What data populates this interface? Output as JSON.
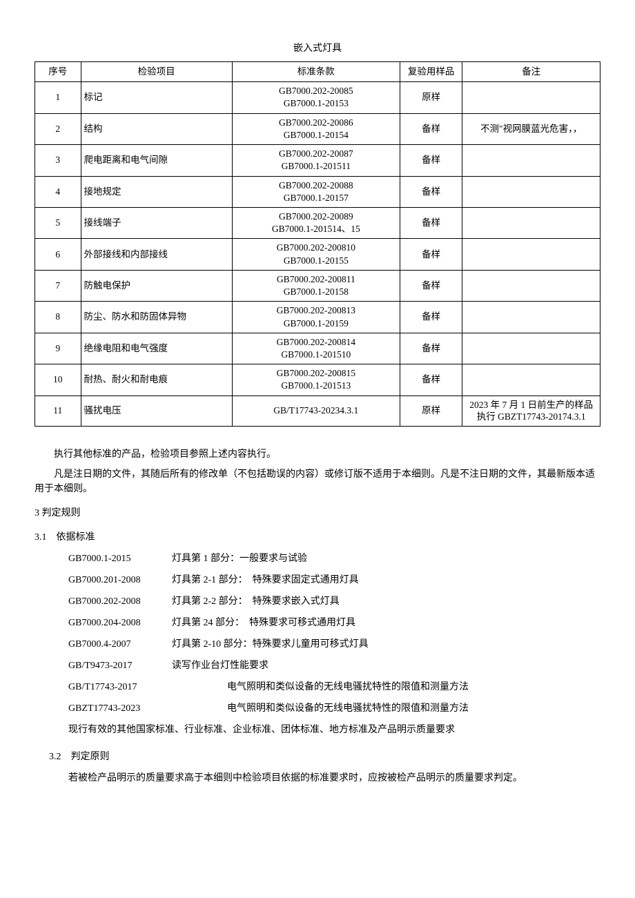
{
  "title": "嵌入式灯具",
  "table": {
    "headers": [
      "序号",
      "检验项目",
      "标准条款",
      "复验用样品",
      "备注"
    ],
    "rows": [
      {
        "seq": "1",
        "item": "标记",
        "std": "GB7000.202-20085\nGB7000.1-20153",
        "sample": "原样",
        "note": ""
      },
      {
        "seq": "2",
        "item": "结构",
        "std": "GB7000.202-20086\nGB7000.1-20154",
        "sample": "备样",
        "note": "不测\"视网膜蓝光危害，，"
      },
      {
        "seq": "3",
        "item": "爬电距离和电气间隙",
        "std": "GB7000.202-20087\nGB7000.1-201511",
        "sample": "备样",
        "note": ""
      },
      {
        "seq": "4",
        "item": "接地规定",
        "std": "GB7000.202-20088\nGB7000.1-20157",
        "sample": "备样",
        "note": ""
      },
      {
        "seq": "5",
        "item": "接线端子",
        "std": "GB7000.202-20089\nGB7000.1-201514、15",
        "sample": "备样",
        "note": ""
      },
      {
        "seq": "6",
        "item": "外部接线和内部接线",
        "std": "GB7000.202-200810\nGB7000.1-20155",
        "sample": "备样",
        "note": ""
      },
      {
        "seq": "7",
        "item": "防触电保护",
        "std": "GB7000.202-200811\nGB7000.1-20158",
        "sample": "备样",
        "note": ""
      },
      {
        "seq": "8",
        "item": "防尘、防水和防固体异物",
        "std": "GB7000.202-200813\nGB7000.1-20159",
        "sample": "备样",
        "note": ""
      },
      {
        "seq": "9",
        "item": "绝缘电阻和电气强度",
        "std": "GB7000.202-200814\nGB7000.1-201510",
        "sample": "备样",
        "note": ""
      },
      {
        "seq": "10",
        "item": "耐热、耐火和耐电痕",
        "std": "GB7000.202-200815\nGB7000.1-201513",
        "sample": "备样",
        "note": ""
      },
      {
        "seq": "11",
        "item": "骚扰电压",
        "std": "GB/T17743-20234.3.1",
        "sample": "原样",
        "note": "2023 年 7 月 1 日前生产的样品执行 GBZT17743-20174.3.1"
      }
    ]
  },
  "paragraphs": {
    "p1": "执行其他标准的产品，检验项目参照上述内容执行。",
    "p2": "凡是注日期的文件，其随后所有的修改单（不包括勘误的内容）或修订版不适用于本细则。凡是不注日期的文件，其最新版本适用于本细则。",
    "s3": "3 判定规则",
    "s31": "3.1　依据标准"
  },
  "standards": [
    {
      "code": "GB7000.1-2015",
      "desc": "灯具第 1 部分：一般要求与试验",
      "offset": false
    },
    {
      "code": "GB7000.201-2008",
      "desc": "灯具第 2-1 部分：　特殊要求固定式通用灯具",
      "offset": false
    },
    {
      "code": "GB7000.202-2008",
      "desc": "灯具第 2-2 部分：　特殊要求嵌入式灯具",
      "offset": false
    },
    {
      "code": "GB7000.204-2008",
      "desc": "灯具第 24 部分：　特殊要求可移式通用灯具",
      "offset": false
    },
    {
      "code": "GB7000.4-2007",
      "desc": "灯具第 2-10 部分：特殊要求儿童用可移式灯具",
      "offset": false
    },
    {
      "code": "GB/T9473-2017",
      "desc": "读写作业台灯性能要求",
      "offset": false
    },
    {
      "code": "GB/T17743-2017",
      "desc": "电气照明和类似设备的无线电骚扰特性的限值和测量方法",
      "offset": true
    },
    {
      "code": "GBZT17743-2023",
      "desc": "电气照明和类似设备的无线电骚扰特性的限值和测量方法",
      "offset": true
    }
  ],
  "lastline": "现行有效的其他国家标准、行业标准、企业标准、团体标准、地方标准及产品明示质量要求",
  "s32": "3.2　判定原则",
  "p32": "若被检产品明示的质量要求高于本细则中检验项目依据的标准要求时，应按被检产品明示的质量要求判定。"
}
